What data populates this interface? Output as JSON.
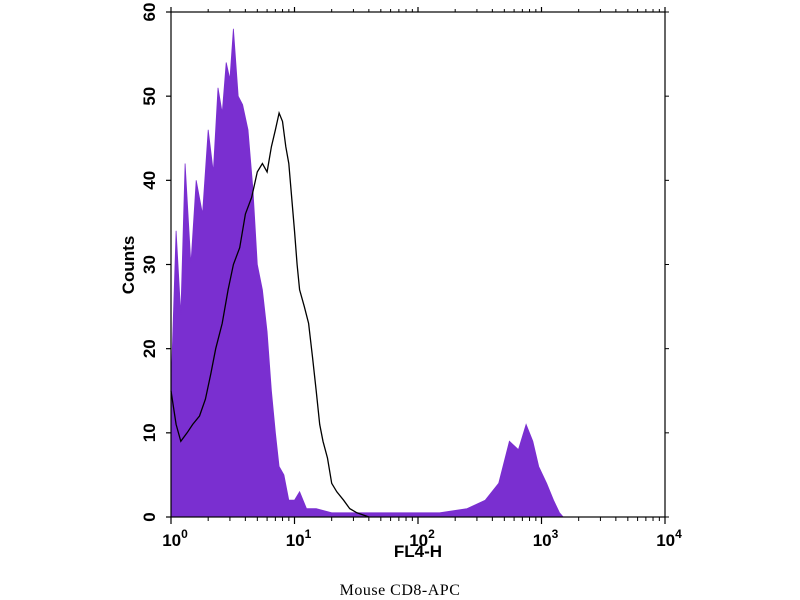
{
  "caption": "Mouse   CD8-APC",
  "chart_data": {
    "type": "area",
    "xlabel": "FL4-H",
    "ylabel": "Counts",
    "xscale": "log",
    "xlim": [
      1,
      10000
    ],
    "ylim": [
      0,
      60
    ],
    "yticks": [
      0,
      10,
      20,
      30,
      40,
      50,
      60
    ],
    "xticks": [
      {
        "value": 1,
        "base": "10",
        "exp": "0"
      },
      {
        "value": 10,
        "base": "10",
        "exp": "1"
      },
      {
        "value": 100,
        "base": "10",
        "exp": "2"
      },
      {
        "value": 1000,
        "base": "10",
        "exp": "3"
      },
      {
        "value": 10000,
        "base": "10",
        "exp": "4"
      }
    ],
    "series": [
      {
        "style": "filled",
        "color": "#7a2fd0",
        "points": [
          [
            1.0,
            15
          ],
          [
            1.1,
            34
          ],
          [
            1.2,
            24
          ],
          [
            1.3,
            42
          ],
          [
            1.45,
            30
          ],
          [
            1.6,
            40
          ],
          [
            1.8,
            36
          ],
          [
            2.0,
            46
          ],
          [
            2.2,
            41
          ],
          [
            2.4,
            51
          ],
          [
            2.6,
            48
          ],
          [
            2.8,
            54
          ],
          [
            3.0,
            52
          ],
          [
            3.2,
            58
          ],
          [
            3.5,
            50
          ],
          [
            3.8,
            49
          ],
          [
            4.2,
            46
          ],
          [
            4.6,
            39
          ],
          [
            5.0,
            30
          ],
          [
            5.5,
            27
          ],
          [
            6.0,
            22
          ],
          [
            6.5,
            15
          ],
          [
            7.0,
            10
          ],
          [
            7.5,
            6
          ],
          [
            8.2,
            5
          ],
          [
            9.0,
            2
          ],
          [
            10.0,
            2
          ],
          [
            11.0,
            3
          ],
          [
            12.5,
            1
          ],
          [
            15,
            1
          ],
          [
            20,
            0.5
          ],
          [
            40,
            0.5
          ],
          [
            80,
            0.5
          ],
          [
            150,
            0.5
          ],
          [
            250,
            1
          ],
          [
            350,
            2
          ],
          [
            450,
            4
          ],
          [
            550,
            9
          ],
          [
            650,
            8
          ],
          [
            750,
            11
          ],
          [
            850,
            9
          ],
          [
            950,
            6
          ],
          [
            1100,
            4
          ],
          [
            1250,
            2
          ],
          [
            1400,
            0.5
          ],
          [
            1500,
            0
          ]
        ]
      },
      {
        "style": "outline",
        "color": "#000000",
        "points": [
          [
            1.0,
            15
          ],
          [
            1.1,
            11
          ],
          [
            1.2,
            9
          ],
          [
            1.35,
            10
          ],
          [
            1.5,
            11
          ],
          [
            1.7,
            12
          ],
          [
            1.9,
            14
          ],
          [
            2.1,
            17
          ],
          [
            2.3,
            20
          ],
          [
            2.6,
            23
          ],
          [
            2.9,
            27
          ],
          [
            3.2,
            30
          ],
          [
            3.6,
            32
          ],
          [
            4.0,
            36
          ],
          [
            4.5,
            38
          ],
          [
            5.0,
            41
          ],
          [
            5.5,
            42
          ],
          [
            6.0,
            41
          ],
          [
            6.5,
            44
          ],
          [
            7.0,
            46
          ],
          [
            7.5,
            48
          ],
          [
            8.0,
            47
          ],
          [
            8.5,
            44
          ],
          [
            9.0,
            42
          ],
          [
            10.0,
            34
          ],
          [
            10.5,
            30
          ],
          [
            11.0,
            27
          ],
          [
            12.0,
            25
          ],
          [
            13.0,
            23
          ],
          [
            14.0,
            19
          ],
          [
            15.0,
            15
          ],
          [
            16.0,
            11
          ],
          [
            17.0,
            9
          ],
          [
            18.5,
            7
          ],
          [
            20,
            4
          ],
          [
            22,
            3
          ],
          [
            25,
            2
          ],
          [
            28,
            1
          ],
          [
            32,
            0.5
          ],
          [
            40,
            0
          ]
        ]
      }
    ]
  }
}
